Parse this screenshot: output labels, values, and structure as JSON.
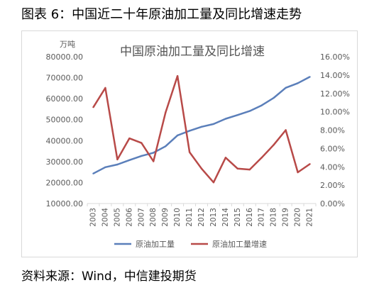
{
  "figure_title": "图表 6：中国近二十年原油加工量及同比增速走势",
  "source": "资料来源：Wind，中信建投期货",
  "colors": {
    "volume": "#5b7fba",
    "growth": "#b84a48",
    "axis_text": "#595959",
    "title_text": "#555555",
    "grid": "#d9d9d9"
  },
  "chart_data": {
    "type": "line",
    "title": "中国原油加工量及同比增速",
    "y_left_unit": "万吨",
    "x": [
      "2003",
      "2004",
      "2005",
      "2006",
      "2007",
      "2008",
      "2009",
      "2010",
      "2011",
      "2012",
      "2013",
      "2014",
      "2015",
      "2016",
      "2017",
      "2018",
      "2019",
      "2020",
      "2021"
    ],
    "y_left_ticks": [
      "10000.00",
      "20000.00",
      "30000.00",
      "40000.00",
      "50000.00",
      "60000.00",
      "70000.00",
      "80000.00"
    ],
    "y_right_ticks": [
      "0.00%",
      "2.00%",
      "4.00%",
      "6.00%",
      "8.00%",
      "10.00%",
      "12.00%",
      "14.00%",
      "16.00%"
    ],
    "ylim_left": [
      10000,
      80000
    ],
    "ylim_right": [
      0,
      16
    ],
    "grid": false,
    "legend_position": "bottom",
    "series": [
      {
        "name": "原油加工量",
        "axis": "left",
        "values": [
          24300,
          27300,
          28600,
          30700,
          32700,
          34200,
          37300,
          42500,
          44700,
          46600,
          47900,
          50400,
          52200,
          54100,
          56800,
          60400,
          65200,
          67400,
          70400
        ]
      },
      {
        "name": "原油加工量增速",
        "axis": "right",
        "values": [
          10.5,
          12.6,
          4.8,
          7.1,
          6.6,
          4.6,
          9.9,
          13.9,
          5.6,
          3.8,
          2.3,
          5.0,
          3.8,
          3.7,
          5.0,
          6.4,
          8.0,
          3.4,
          4.3
        ]
      }
    ]
  }
}
